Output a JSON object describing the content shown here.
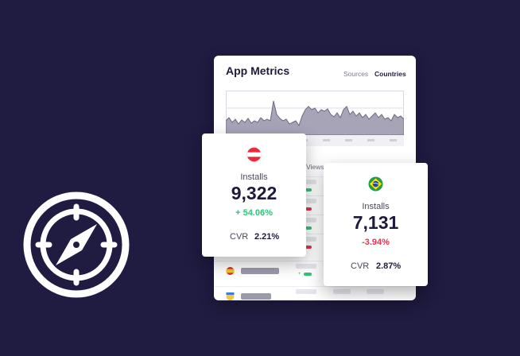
{
  "panel": {
    "title": "App Metrics",
    "tabs": [
      {
        "label": "Sources",
        "active": false
      },
      {
        "label": "Countries",
        "active": true
      }
    ],
    "table_header": "Views"
  },
  "cards": [
    {
      "country": "Austria",
      "flag_icon": "austria-flag-icon",
      "label": "Installs",
      "value": "9,322",
      "change": "+ 54.06%",
      "change_color": "#2ec776",
      "cvr_label": "CVR",
      "cvr_value": "2.21%"
    },
    {
      "country": "Brazil",
      "flag_icon": "brazil-flag-icon",
      "label": "Installs",
      "value": "7,131",
      "change": "-3.94%",
      "change_color": "#e8314f",
      "cvr_label": "CVR",
      "cvr_value": "2.87%"
    }
  ],
  "decor": {
    "left_icon": "compass-icon"
  },
  "colors": {
    "background": "#1f1b41",
    "positive": "#2ec776",
    "negative": "#e8314f",
    "chart_fill": "#a7a4b8"
  }
}
